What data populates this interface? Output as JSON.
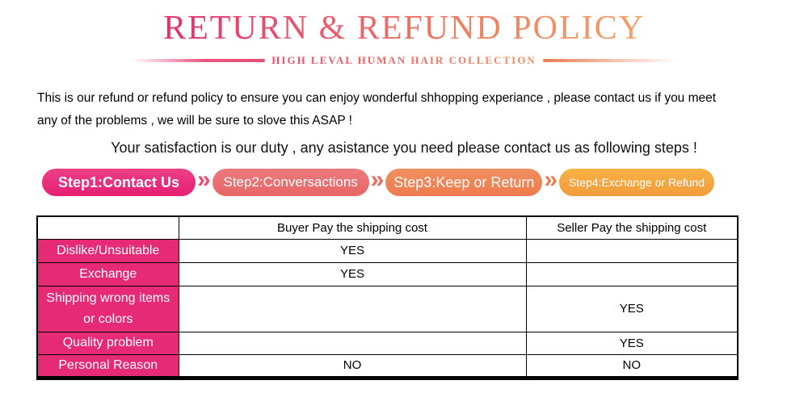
{
  "header": {
    "title": "RETURN & REFUND POLICY",
    "subtitle": "HIGH LEVAL HUMAN HAIR COLLECTION"
  },
  "intro": {
    "line1": "This is our refund or refund policy to ensure you can enjoy wonderful shhopping experiance , please contact us if you meet",
    "line2": "any of the problems , we will be sure to slove this ASAP !",
    "satisfaction": "Your satisfaction is our duty , any asistance you need please contact us as following steps !"
  },
  "steps": {
    "separator": "»",
    "items": [
      {
        "label": "Step1:Contact Us",
        "color": "#e8257b"
      },
      {
        "label": "Step2:Conversactions",
        "color": "#e96d6e"
      },
      {
        "label": "Step3:Keep or Return",
        "color": "#ef8453"
      },
      {
        "label": "Step4:Exchange or Refund",
        "color": "#f4a83e"
      }
    ]
  },
  "table": {
    "columns": [
      "",
      "Buyer Pay the shipping cost",
      "Seller Pay the shipping cost"
    ],
    "rows": [
      {
        "label": "Dislike/Unsuitable",
        "buyer": "YES",
        "seller": ""
      },
      {
        "label": "Exchange",
        "buyer": "YES",
        "seller": ""
      },
      {
        "label": "Shipping wrong items or colors",
        "buyer": "",
        "seller": "YES"
      },
      {
        "label": "Quality problem",
        "buyer": "",
        "seller": "YES"
      },
      {
        "label": "Personal Reason",
        "buyer": "NO",
        "seller": "NO"
      }
    ],
    "label_bg_color": "#e72a74"
  },
  "colors": {
    "title_gradient_start": "#e42e6d",
    "title_gradient_end": "#f2a166",
    "accent_pink": "#e72a74",
    "step1_color": "#e8257b",
    "step2_color": "#e96d6e",
    "step3_color": "#ef8453",
    "step4_color": "#f4a83e"
  }
}
